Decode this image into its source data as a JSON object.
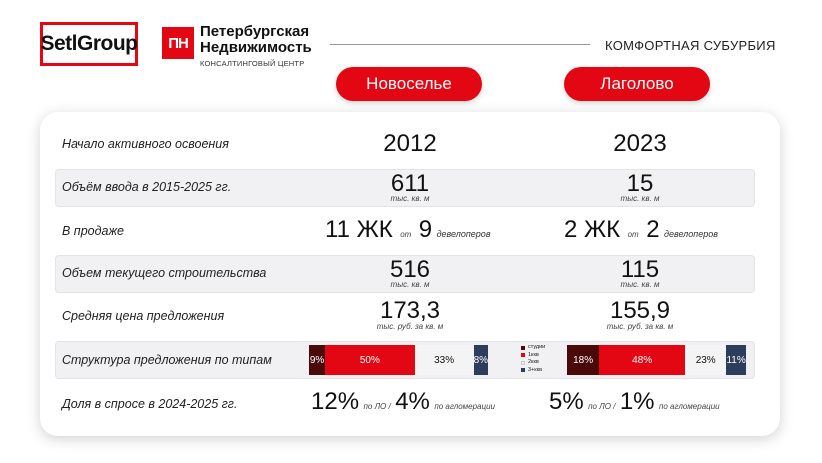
{
  "header": {
    "logo_seti": "SetlGroup",
    "logo_pn_mark": "ПН",
    "pn_name_line1": "Петербургская",
    "pn_name_line2": "Недвижимость",
    "pn_subtitle": "КОНСАЛТИНГОВЫЙ ЦЕНТР",
    "tagline": "КОМФОРТНАЯ СУБУРБИЯ"
  },
  "columns": [
    "Новоселье",
    "Лаголово"
  ],
  "rows": {
    "start": {
      "label": "Начало активного освоения",
      "values": [
        "2012",
        "2023"
      ]
    },
    "volume": {
      "label": "Объём ввода в 2015-2025 гг.",
      "values": [
        "611",
        "15"
      ],
      "unit": "тыс. кв. м"
    },
    "sale": {
      "label": "В продаже",
      "projects": [
        "11 ЖК",
        "2 ЖК"
      ],
      "from": "от",
      "devs": [
        "9",
        "2"
      ],
      "devs_label": "девелоперов"
    },
    "construction": {
      "label": "Объем текущего строительства",
      "values": [
        "516",
        "115"
      ],
      "unit": "тыс. кв. м"
    },
    "price": {
      "label": "Средняя цена предложения",
      "values": [
        "173,3",
        "155,9"
      ],
      "unit": "тыс. руб. за кв. м"
    },
    "structure": {
      "label": "Структура предложения по типам",
      "bars": [
        {
          "segments": [
            {
              "type": "студии",
              "value": 9,
              "text": "9%"
            },
            {
              "type": "1ккв",
              "value": 50,
              "text": "50%"
            },
            {
              "type": "2ккв",
              "value": 33,
              "text": "33%"
            },
            {
              "type": "3+ккв",
              "value": 8,
              "text": "8%"
            }
          ]
        },
        {
          "segments": [
            {
              "type": "студии",
              "value": 18,
              "text": "18%"
            },
            {
              "type": "1ккв",
              "value": 48,
              "text": "48%"
            },
            {
              "type": "2ккв",
              "value": 23,
              "text": "23%"
            },
            {
              "type": "3+ккв",
              "value": 11,
              "text": "11%"
            }
          ]
        }
      ],
      "legend": [
        "студии",
        "1ккв",
        "2ккв",
        "3+ккв"
      ],
      "colors": [
        "#4a0a0a",
        "#e30613",
        "#f4f4f4",
        "#2c3e5c"
      ]
    },
    "demand": {
      "label": "Доля в спросе в 2024-2025 гг.",
      "lo": [
        "12%",
        "5%"
      ],
      "lo_label": "по ЛО /",
      "aggl": [
        "4%",
        "1%"
      ],
      "aggl_label": "по агломерации"
    }
  }
}
